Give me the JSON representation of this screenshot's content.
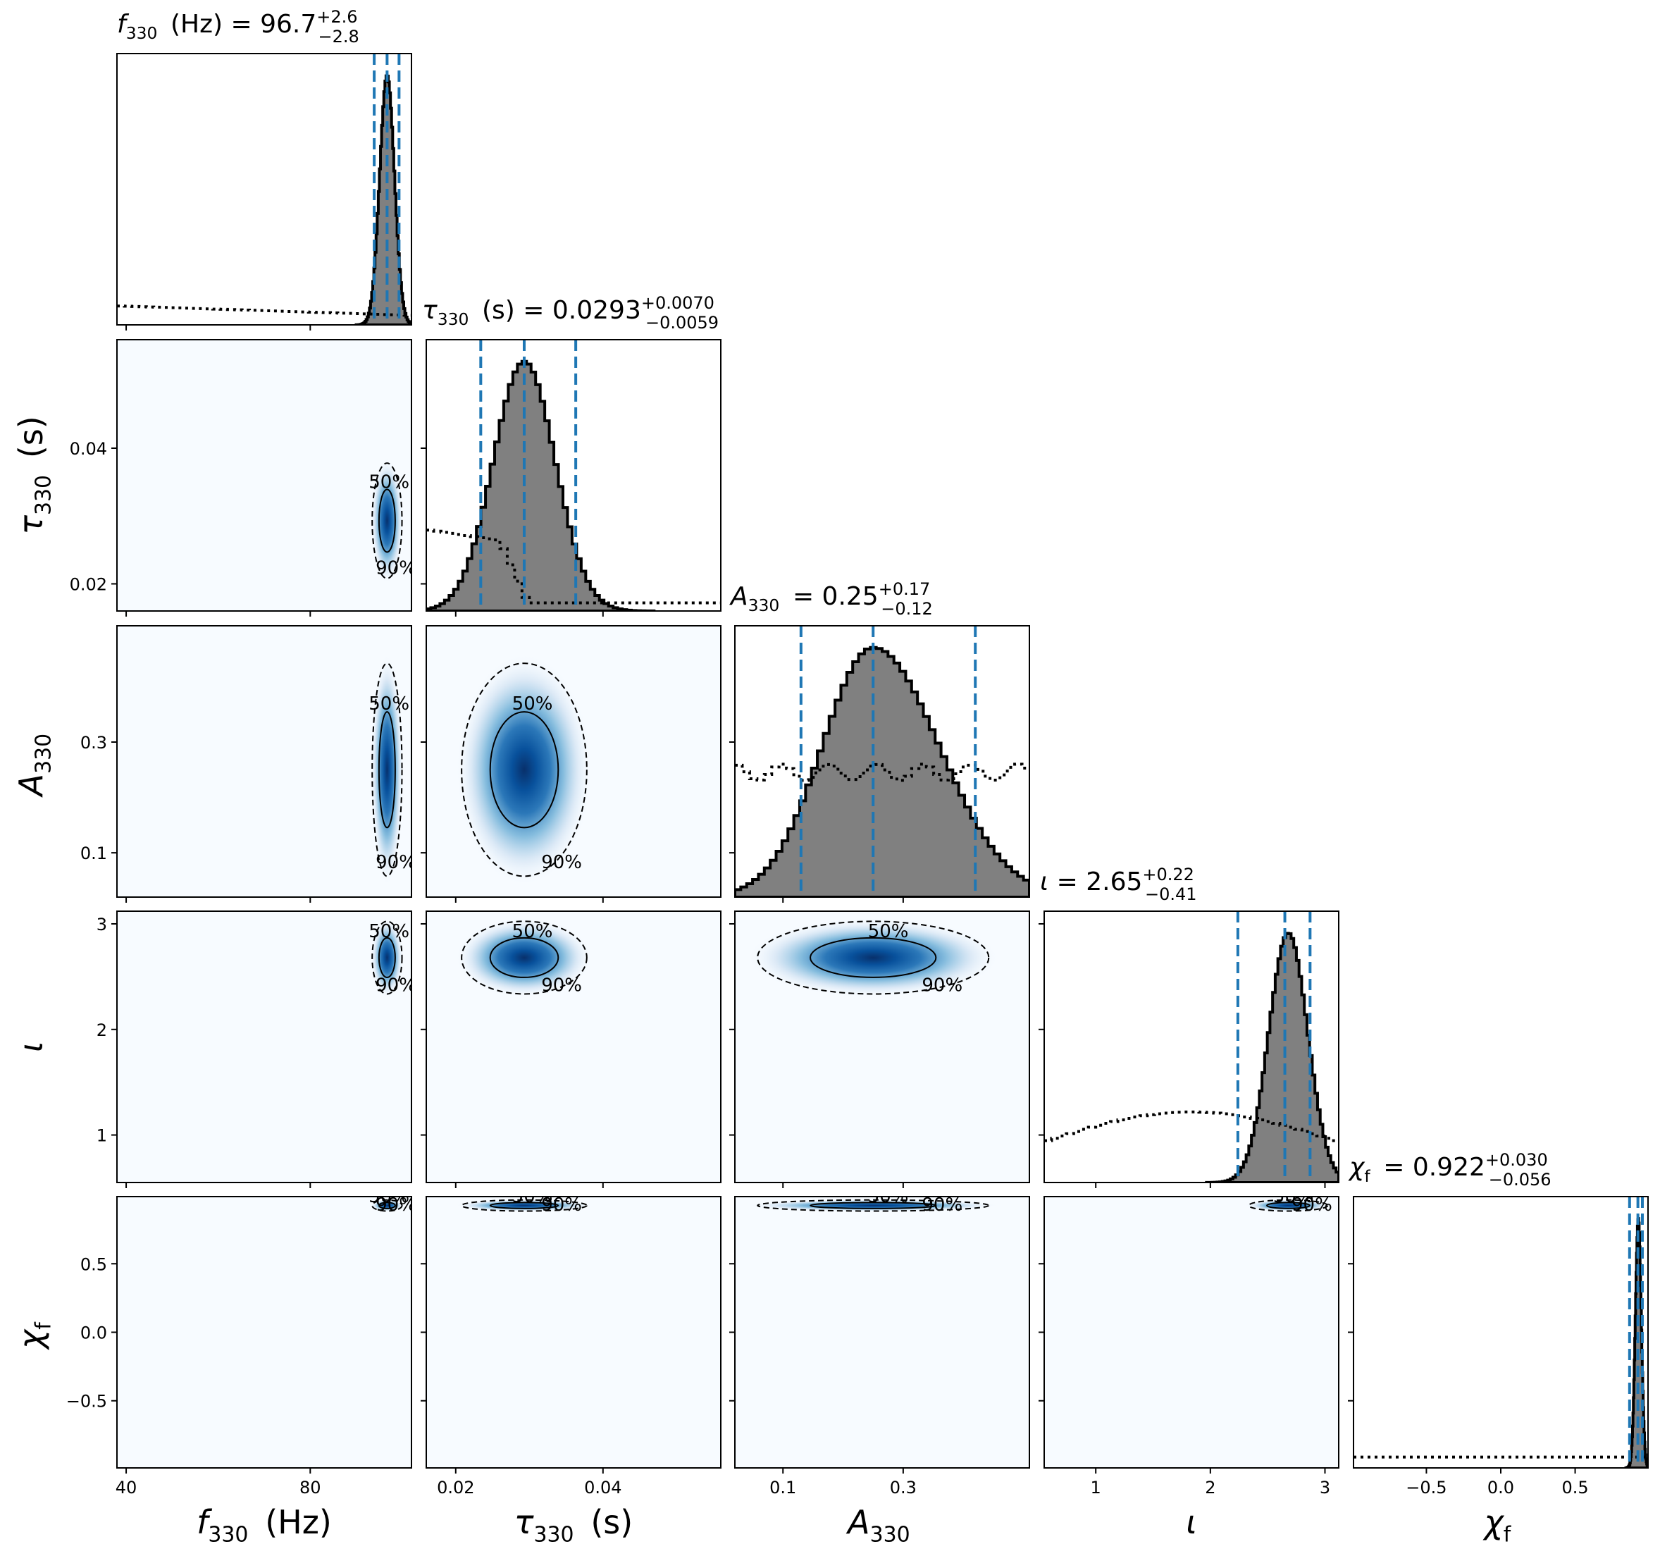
{
  "chart_data": {
    "type": "corner",
    "parameters": [
      {
        "key": "f330",
        "sym": "f",
        "sub": "330",
        "italic": true,
        "unit": "(Hz)",
        "range": [
          38,
          102
        ],
        "ticks": [
          40,
          80
        ],
        "tick_labels": [
          "40",
          "80"
        ]
      },
      {
        "key": "tau330",
        "sym": "τ",
        "sub": "330",
        "italic": true,
        "unit": "(s)",
        "range": [
          0.016,
          0.056
        ],
        "ticks": [
          0.02,
          0.04
        ],
        "tick_labels": [
          "0.02",
          "0.04"
        ]
      },
      {
        "key": "A330",
        "sym": "A",
        "sub": "330",
        "italic": true,
        "unit": "",
        "range": [
          0.02,
          0.51
        ],
        "ticks": [
          0.1,
          0.3
        ],
        "tick_labels": [
          "0.1",
          "0.3"
        ]
      },
      {
        "key": "iota",
        "sym": "ι",
        "sub": "",
        "italic": true,
        "unit": "",
        "range": [
          0.55,
          3.12
        ],
        "ticks": [
          1,
          2,
          3
        ],
        "tick_labels": [
          "1",
          "2",
          "3"
        ]
      },
      {
        "key": "chif",
        "sym": "χ",
        "sub": "f",
        "italic": true,
        "unit": "",
        "range": [
          -0.99,
          0.99
        ],
        "ticks": [
          -0.5,
          0.0,
          0.5
        ],
        "tick_labels": [
          "−0.5",
          "0.0",
          "0.5"
        ]
      }
    ],
    "titles": [
      {
        "param": "f330",
        "median": "96.7",
        "plus": "+2.6",
        "minus": "−2.8",
        "unit": "(Hz)"
      },
      {
        "param": "tau330",
        "median": "0.0293",
        "plus": "+0.0070",
        "minus": "−0.0059",
        "unit": "(s)"
      },
      {
        "param": "A330",
        "median": "0.25",
        "plus": "+0.17",
        "minus": "−0.12",
        "unit": ""
      },
      {
        "param": "iota",
        "median": "2.65",
        "plus": "+0.22",
        "minus": "−0.41",
        "unit": ""
      },
      {
        "param": "chif",
        "median": "0.922",
        "plus": "+0.030",
        "minus": "−0.056",
        "unit": ""
      }
    ],
    "quantiles": {
      "f330": [
        93.9,
        96.7,
        99.3
      ],
      "tau330": [
        0.0234,
        0.0293,
        0.0363
      ],
      "A330": [
        0.13,
        0.25,
        0.42
      ],
      "iota": [
        2.24,
        2.65,
        2.87
      ],
      "chif": [
        0.866,
        0.922,
        0.952
      ]
    },
    "posterior": {
      "f330": {
        "center": 96.7,
        "sigma": 1.6
      },
      "tau330": {
        "center": 0.0293,
        "sigma": 0.0042
      },
      "A330": {
        "center": 0.25,
        "sigma": 0.095
      },
      "iota": {
        "center": 2.68,
        "sigma": 0.17
      },
      "chif": {
        "center": 0.925,
        "sigma": 0.02
      }
    },
    "contour_levels": [
      "50%",
      "90%"
    ],
    "colors": {
      "hist_fill": "#808080",
      "quantile_line": "#1f77b4",
      "density_dark": "#08306b",
      "density_light": "#f7fbff"
    }
  }
}
